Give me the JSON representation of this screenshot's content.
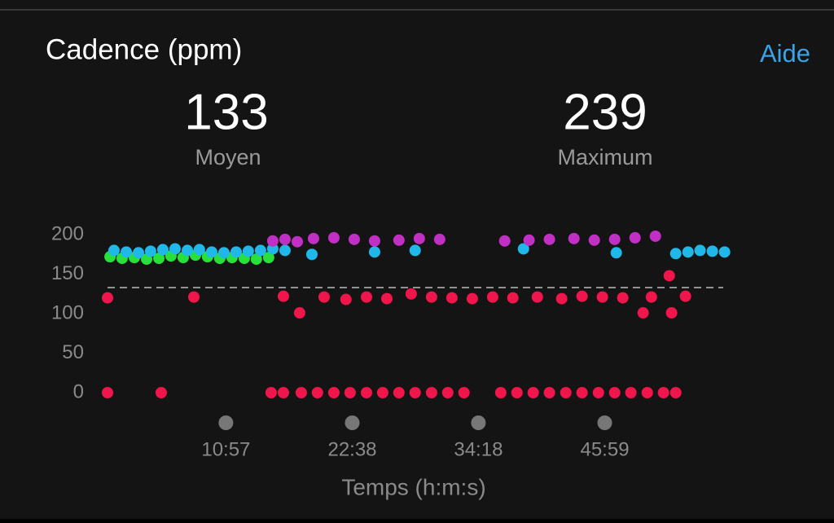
{
  "chart_data": {
    "type": "scatter",
    "title": "Cadence (ppm)",
    "help_link": "Aide",
    "stats": [
      {
        "value": 133,
        "label": "Moyen"
      },
      {
        "value": 239,
        "label": "Maximum"
      }
    ],
    "average_line": 133,
    "xlabel": "Temps (h:m:s)",
    "xlim": [
      0,
      3430
    ],
    "xticks": [
      {
        "value": 657,
        "label": "10:57"
      },
      {
        "value": 1358,
        "label": "22:38"
      },
      {
        "value": 2058,
        "label": "34:18"
      },
      {
        "value": 2759,
        "label": "45:59"
      }
    ],
    "ylim": [
      0,
      200
    ],
    "yticks": [
      0,
      50,
      100,
      150,
      200
    ],
    "series": [
      {
        "color": "#27e03a",
        "x": [
          14,
          81,
          149,
          217,
          285,
          352,
          420,
          488,
          555,
          623,
          691,
          759,
          826,
          894
        ],
        "values": [
          172,
          170,
          171,
          169,
          170,
          173,
          171,
          174,
          172,
          170,
          171,
          170,
          169,
          171
        ]
      },
      {
        "color": "#1fb8e8",
        "x": [
          36,
          104,
          172,
          239,
          307,
          375,
          443,
          510,
          578,
          646,
          714,
          781,
          849,
          917,
          985,
          1134,
          1482,
          1707,
          2308,
          2823,
          3153,
          3221,
          3288,
          3356,
          3424
        ],
        "values": [
          180,
          178,
          177,
          179,
          181,
          182,
          180,
          181,
          178,
          177,
          178,
          179,
          180,
          182,
          180,
          175,
          178,
          180,
          182,
          177,
          176,
          178,
          180,
          179,
          178
        ]
      },
      {
        "color": "#c22fc4",
        "x": [
          917,
          985,
          1053,
          1143,
          1256,
          1369,
          1482,
          1617,
          1730,
          1843,
          2204,
          2339,
          2452,
          2588,
          2701,
          2814,
          2927,
          3040
        ],
        "values": [
          192,
          194,
          191,
          195,
          196,
          194,
          192,
          193,
          195,
          194,
          192,
          193,
          194,
          195,
          193,
          194,
          196,
          198
        ]
      },
      {
        "color": "#f0154a",
        "x": [
          0,
          479,
          976,
          1066,
          1202,
          1323,
          1437,
          1550,
          1685,
          1798,
          1911,
          2024,
          2137,
          2249,
          2385,
          2520,
          2633,
          2746,
          2859,
          2972,
          3018,
          3130,
          3117,
          3207,
          0,
          298,
          908,
          976,
          1075,
          1165,
          1256,
          1346,
          1437,
          1527,
          1617,
          1707,
          1798,
          1888,
          1978,
          2182,
          2272,
          2362,
          2452,
          2543,
          2633,
          2724,
          2814,
          2904,
          2995,
          3085,
          3153
        ],
        "values": [
          120,
          121,
          122,
          101,
          121,
          118,
          121,
          119,
          125,
          121,
          120,
          119,
          121,
          120,
          121,
          119,
          122,
          121,
          120,
          101,
          121,
          101,
          148,
          122,
          0,
          0,
          0,
          0,
          0,
          0,
          0,
          0,
          0,
          0,
          0,
          0,
          0,
          0,
          0,
          0,
          0,
          0,
          0,
          0,
          0,
          0,
          0,
          0,
          0,
          0,
          0
        ]
      }
    ]
  }
}
